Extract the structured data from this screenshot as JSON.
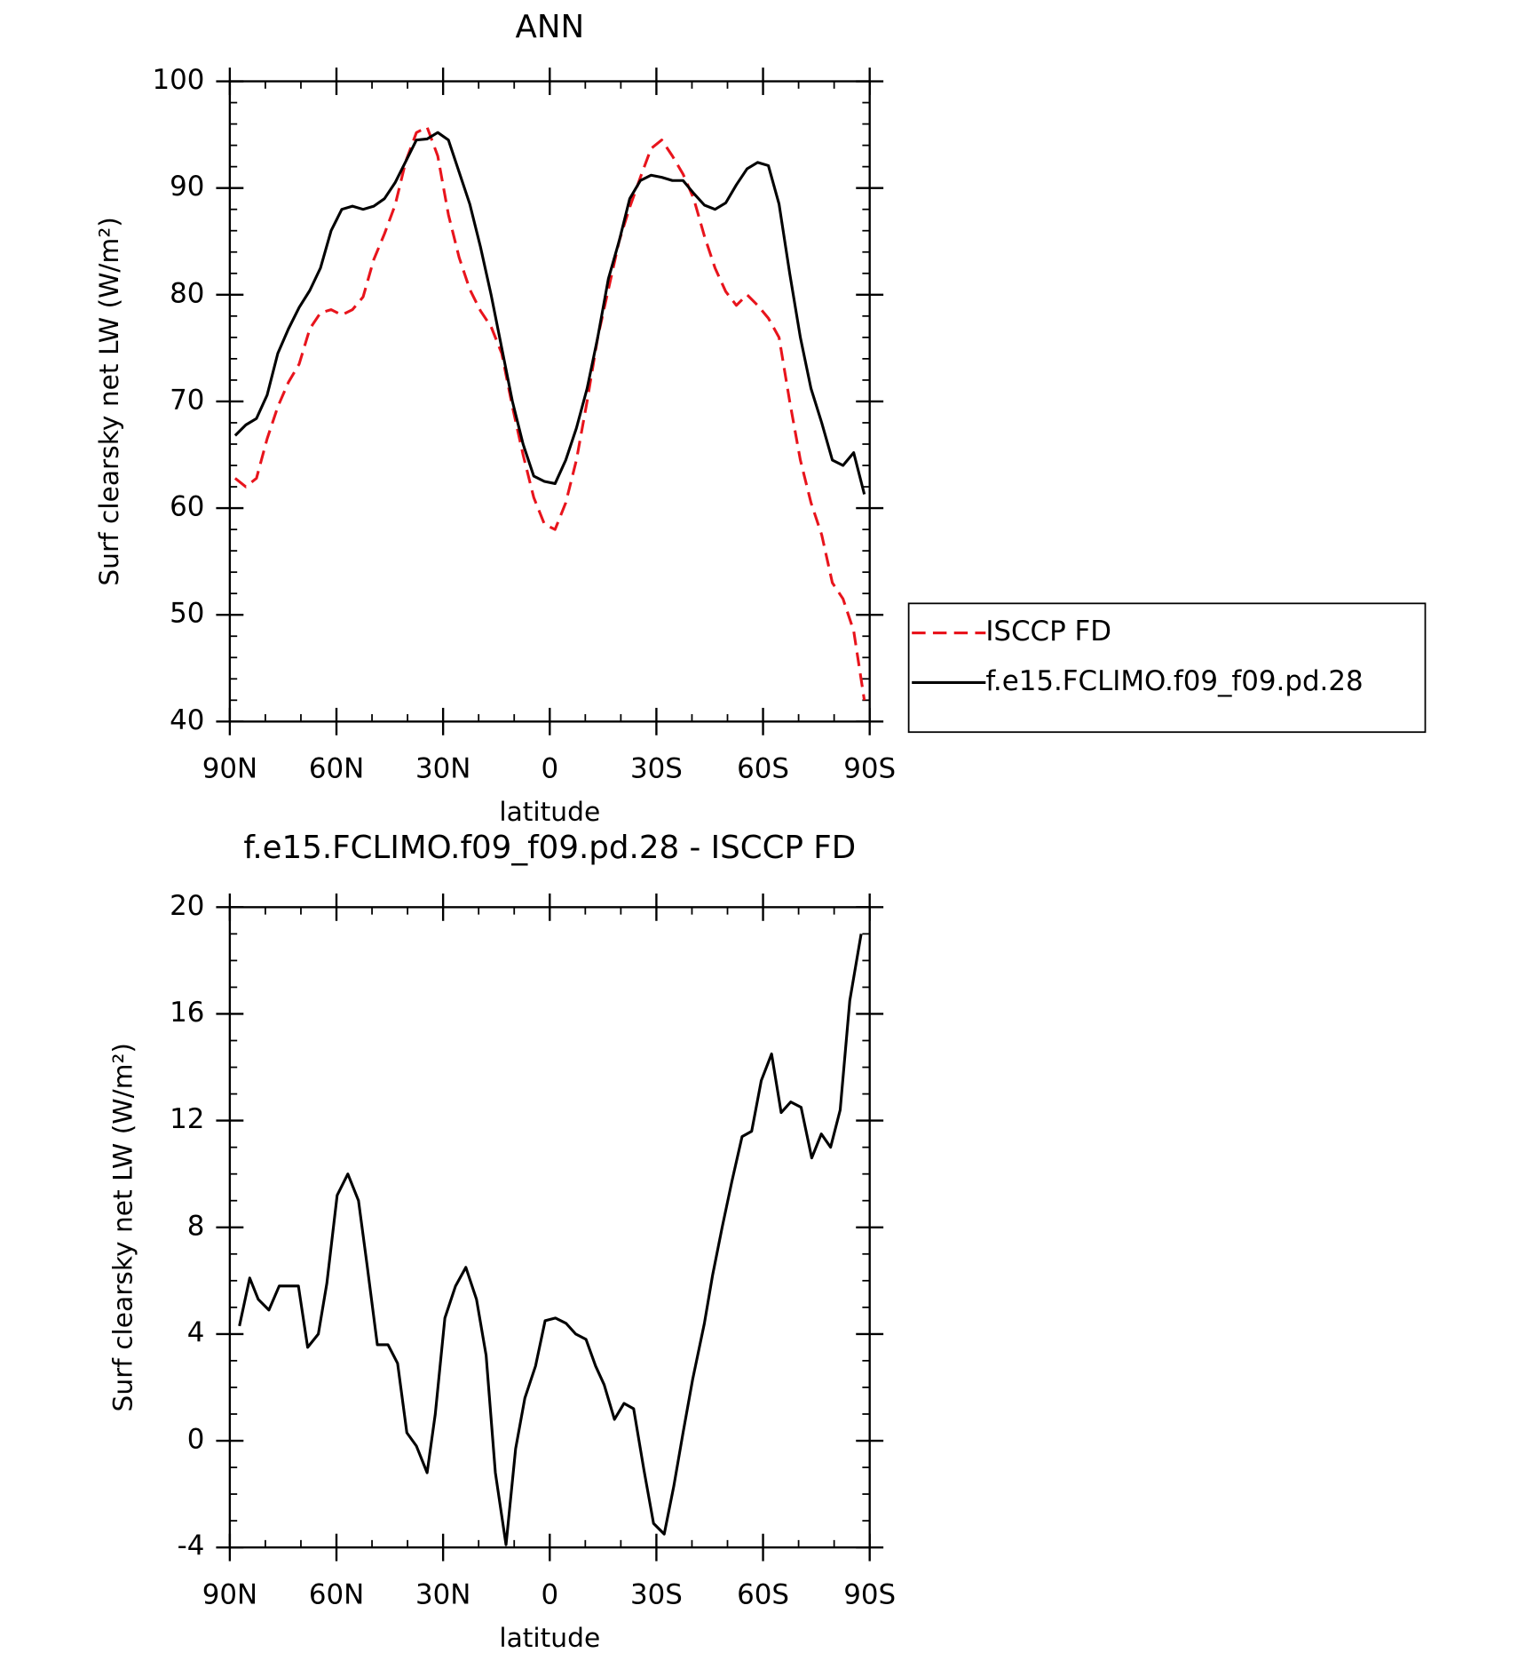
{
  "chart_data": [
    {
      "type": "line",
      "title": "ANN",
      "xlabel": "latitude",
      "ylabel": "Surf clearsky net LW (W/m²)",
      "x": [
        88.5,
        85.5,
        82.5,
        79.5,
        76.5,
        73.5,
        70.5,
        67.5,
        64.5,
        61.5,
        58.5,
        55.5,
        52.5,
        49.5,
        46.5,
        43.5,
        40.5,
        37.5,
        34.5,
        31.5,
        28.5,
        25.5,
        22.5,
        19.5,
        16.5,
        13.5,
        10.5,
        7.5,
        4.5,
        1.5,
        -1.5,
        -4.5,
        -7.5,
        -10.5,
        -13.5,
        -16.5,
        -19.5,
        -22.5,
        -25.5,
        -28.5,
        -31.5,
        -34.5,
        -37.5,
        -40.5,
        -43.5,
        -46.5,
        -49.5,
        -52.5,
        -55.5,
        -58.5,
        -61.5,
        -64.5,
        -67.5,
        -70.5,
        -73.5,
        -76.5,
        -79.5,
        -82.5,
        -85.5,
        -88.5
      ],
      "series": [
        {
          "name": "ISCCP FD",
          "color": "#e8141c",
          "linestyle": "dashed",
          "values": [
            62.8,
            62,
            62.8,
            66.5,
            69.5,
            71.8,
            73.5,
            76.8,
            78.3,
            78.6,
            78.1,
            78.6,
            79.8,
            83.3,
            85.7,
            88.4,
            92.5,
            95.2,
            95.7,
            93,
            87.5,
            83.5,
            80.5,
            78.5,
            77,
            74.5,
            69.5,
            65,
            61,
            58.5,
            58,
            60.5,
            64.5,
            70,
            76,
            80.5,
            85,
            88.2,
            91,
            93.7,
            94.5,
            93,
            91.3,
            89,
            85.5,
            82.5,
            80.3,
            79,
            80,
            79,
            77.8,
            76,
            70,
            64.5,
            60.5,
            57.5,
            53,
            51.5,
            48.5,
            42
          ]
        },
        {
          "name": "f.e15.FCLIMO.f09_f09.pd.28",
          "color": "#000000",
          "linestyle": "solid",
          "values": [
            66.8,
            67.8,
            68.4,
            70.6,
            74.5,
            76.8,
            78.8,
            80.4,
            82.5,
            86,
            88,
            88.3,
            88,
            88.3,
            89,
            90.5,
            92.5,
            94.5,
            94.6,
            95.2,
            94.5,
            91.5,
            88.5,
            84.5,
            80,
            75,
            70,
            66,
            63,
            62.5,
            62.3,
            64.5,
            67.5,
            71.2,
            76,
            81.5,
            85,
            89,
            90.7,
            91.2,
            91,
            90.7,
            90.7,
            89.5,
            88.4,
            88,
            88.6,
            90.3,
            91.8,
            92.4,
            92.1,
            88.5,
            82,
            76,
            71.2,
            68,
            64.5,
            64,
            65.2,
            61.3
          ]
        }
      ],
      "xlim": [
        90,
        -90
      ],
      "xticks": [
        {
          "value": 90,
          "label": "90N"
        },
        {
          "value": 60,
          "label": "60N"
        },
        {
          "value": 30,
          "label": "30N"
        },
        0,
        {
          "value": -30,
          "label": "30S"
        },
        {
          "value": -60,
          "label": "60S"
        },
        {
          "value": -90,
          "label": "90S"
        }
      ],
      "ylim": [
        40,
        100
      ],
      "yticks": [
        40,
        50,
        60,
        70,
        80,
        90,
        100
      ],
      "legend": "right"
    },
    {
      "type": "line",
      "title": "f.e15.FCLIMO.f09_f09.pd.28 - ISCCP FD",
      "xlabel": "latitude",
      "ylabel": "Surf clearsky net LW (W/m²)",
      "x": [
        87.3,
        84.4,
        82.0,
        79.0,
        76.1,
        73.1,
        70.7,
        68.1,
        65.1,
        62.7,
        59.8,
        56.8,
        53.8,
        51.4,
        48.5,
        45.5,
        42.8,
        40.2,
        37.5,
        34.5,
        32.2,
        29.5,
        26.5,
        23.6,
        20.6,
        17.9,
        15.3,
        12.3,
        9.6,
        7.0,
        4.0,
        1.3,
        -1.6,
        -4.6,
        -7.3,
        -10.2,
        -12.9,
        -15.3,
        -18.2,
        -20.9,
        -23.6,
        -26.5,
        -29.2,
        -32.2,
        -34.9,
        -37.5,
        -40.2,
        -43.5,
        -45.8,
        -48.5,
        -51.2,
        -54.1,
        -56.8,
        -59.5,
        -62.4,
        -65.1,
        -67.8,
        -70.7,
        -73.7,
        -76.4,
        -79.0,
        -81.7,
        -84.4,
        -87.6
      ],
      "color": "#000000",
      "values": [
        4.3,
        6.1,
        5.3,
        4.9,
        5.8,
        5.8,
        5.8,
        3.5,
        4.0,
        5.9,
        9.2,
        10.0,
        9.0,
        6.6,
        3.6,
        3.6,
        2.9,
        0.3,
        -0.2,
        -1.2,
        1.0,
        4.6,
        5.8,
        6.5,
        5.3,
        3.2,
        -1.2,
        -3.9,
        -0.3,
        1.6,
        2.8,
        4.5,
        4.6,
        4.4,
        4.0,
        3.8,
        2.8,
        2.1,
        0.8,
        1.4,
        1.2,
        -1.1,
        -3.1,
        -3.5,
        -1.7,
        0.3,
        2.3,
        4.4,
        6.2,
        8.0,
        9.7,
        11.4,
        11.6,
        13.5,
        14.5,
        12.3,
        12.7,
        12.5,
        10.6,
        11.5,
        11.0,
        12.4,
        16.5,
        19.0
      ],
      "xlim": [
        90,
        -90
      ],
      "xticks": [
        {
          "value": 90,
          "label": "90N"
        },
        {
          "value": 60,
          "label": "60N"
        },
        {
          "value": 30,
          "label": "30N"
        },
        0,
        {
          "value": -30,
          "label": "30S"
        },
        {
          "value": -60,
          "label": "60S"
        },
        {
          "value": -90,
          "label": "90S"
        }
      ],
      "ylim": [
        -4,
        20
      ],
      "yticks": [
        -4,
        0,
        4,
        8,
        12,
        16,
        20
      ]
    }
  ]
}
